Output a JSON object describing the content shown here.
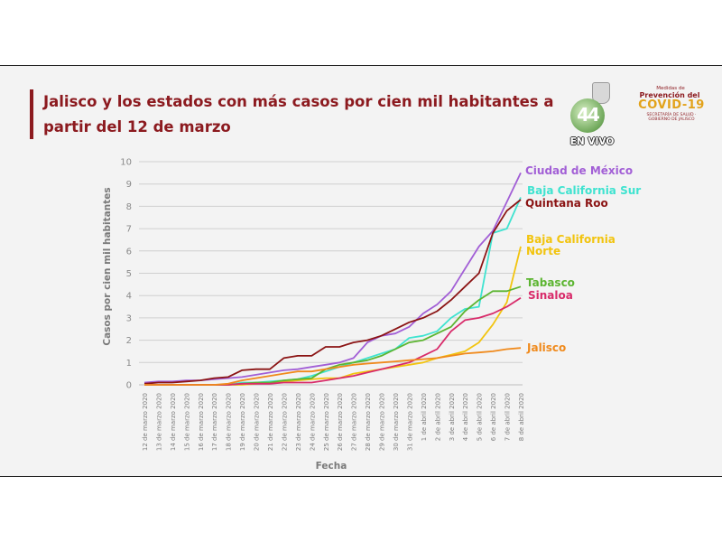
{
  "slide": {
    "title": "Jalisco y los estados con más casos por cien mil habitantes a partir del 12 de marzo",
    "live_badge": "EN VIVO",
    "logo_text": "44",
    "campaign_logo": {
      "line1": "Medidas de",
      "line2": "Prevención del",
      "line3": "COVID-19",
      "line4": "SECRETARÍA DE SALUD · GOBIERNO DE JALISCO"
    }
  },
  "colors": {
    "title": "#8c1a1f",
    "grid": "#d0d0d0",
    "axis": "#bdbdbd"
  },
  "chart_data": {
    "type": "line",
    "title": "Jalisco y los estados con más casos por cien mil habitantes a partir del 12 de marzo",
    "xlabel": "Fecha",
    "ylabel": "Casos por cien mil habitantes",
    "ylim": [
      0,
      10
    ],
    "yticks": [
      0,
      1,
      2,
      3,
      4,
      5,
      6,
      7,
      8,
      9,
      10
    ],
    "grid": "horizontal",
    "legend": "labels at line ends (right)",
    "x": [
      "12 de marzo 2020",
      "13 de marzo 2020",
      "14 de marzo 2020",
      "15 de marzo 2020",
      "16 de marzo 2020",
      "17 de marzo 2020",
      "18 de marzo 2020",
      "19 de marzo 2020",
      "20 de marzo 2020",
      "21 de marzo 2020",
      "22 de marzo 2020",
      "23 de marzo 2020",
      "24 de marzo 2020",
      "25 de marzo 2020",
      "26 de marzo 2020",
      "27 de marzo 2020",
      "28 de marzo 2020",
      "29 de marzo 2020",
      "30 de marzo 2020",
      "31 de marzo 2020",
      "1 de abril 2020",
      "2 de abril 2020",
      "3 de abril 2020",
      "4 de abril 2020",
      "5 de abril 2020",
      "6 de abril 2020",
      "7 de abril 2020",
      "8 de abril 2020"
    ],
    "series": [
      {
        "name": "Ciudad de México",
        "color": "#a25fd6",
        "values": [
          0.1,
          0.15,
          0.15,
          0.2,
          0.2,
          0.25,
          0.3,
          0.35,
          0.45,
          0.55,
          0.65,
          0.7,
          0.8,
          0.9,
          1.0,
          1.2,
          1.9,
          2.2,
          2.3,
          2.6,
          3.2,
          3.6,
          4.2,
          5.2,
          6.2,
          6.9,
          8.2,
          9.5
        ]
      },
      {
        "name": "Baja California Sur",
        "color": "#3fe3d0",
        "values": [
          0,
          0,
          0,
          0,
          0,
          0,
          0,
          0.1,
          0.1,
          0.15,
          0.2,
          0.25,
          0.4,
          0.6,
          0.8,
          1.0,
          1.2,
          1.4,
          1.6,
          2.1,
          2.2,
          2.4,
          3.0,
          3.4,
          3.5,
          6.8,
          7.0,
          8.4
        ]
      },
      {
        "name": "Quintana Roo",
        "color": "#8b1414",
        "values": [
          0.05,
          0.1,
          0.1,
          0.15,
          0.2,
          0.3,
          0.35,
          0.65,
          0.7,
          0.7,
          1.2,
          1.3,
          1.3,
          1.7,
          1.7,
          1.9,
          2.0,
          2.2,
          2.5,
          2.8,
          3.0,
          3.3,
          3.8,
          4.4,
          5.0,
          6.8,
          7.8,
          8.3
        ]
      },
      {
        "name": "Baja California Norte",
        "color": "#f2c40f",
        "values": [
          0,
          0,
          0,
          0,
          0,
          0,
          0,
          0,
          0.05,
          0.1,
          0.15,
          0.2,
          0.25,
          0.3,
          0.3,
          0.5,
          0.6,
          0.7,
          0.8,
          0.9,
          1.0,
          1.2,
          1.35,
          1.5,
          1.9,
          2.7,
          3.7,
          6.2
        ]
      },
      {
        "name": "Tabasco",
        "color": "#5cb531",
        "values": [
          0,
          0,
          0,
          0,
          0,
          0,
          0,
          0.05,
          0.1,
          0.1,
          0.2,
          0.25,
          0.3,
          0.7,
          0.9,
          1.0,
          1.1,
          1.3,
          1.6,
          1.9,
          2.0,
          2.3,
          2.6,
          3.3,
          3.8,
          4.2,
          4.2,
          4.4
        ]
      },
      {
        "name": "Sinaloa",
        "color": "#d82b6a",
        "values": [
          0,
          0,
          0,
          0,
          0,
          0,
          0,
          0.05,
          0.05,
          0.05,
          0.1,
          0.1,
          0.1,
          0.2,
          0.3,
          0.4,
          0.55,
          0.7,
          0.85,
          1.0,
          1.3,
          1.6,
          2.4,
          2.9,
          3.0,
          3.2,
          3.5,
          3.9
        ]
      },
      {
        "name": "Jalisco",
        "color": "#f08a1c",
        "values": [
          0,
          0,
          0,
          0,
          0,
          0,
          0.05,
          0.2,
          0.3,
          0.4,
          0.5,
          0.6,
          0.6,
          0.7,
          0.8,
          0.9,
          0.95,
          1.0,
          1.05,
          1.1,
          1.15,
          1.2,
          1.3,
          1.4,
          1.45,
          1.5,
          1.6,
          1.65
        ]
      }
    ],
    "series_labels": [
      {
        "series": "Ciudad de México",
        "lines": [
          "Ciudad de México"
        ]
      },
      {
        "series": "Baja California Sur",
        "lines": [
          "Baja California Sur"
        ]
      },
      {
        "series": "Quintana Roo",
        "lines": [
          "Quintana Roo"
        ]
      },
      {
        "series": "Baja California Norte",
        "lines": [
          "Baja California",
          "Norte"
        ]
      },
      {
        "series": "Tabasco",
        "lines": [
          "Tabasco"
        ]
      },
      {
        "series": "Sinaloa",
        "lines": [
          "Sinaloa"
        ]
      },
      {
        "series": "Jalisco",
        "lines": [
          "Jalisco"
        ]
      }
    ]
  }
}
